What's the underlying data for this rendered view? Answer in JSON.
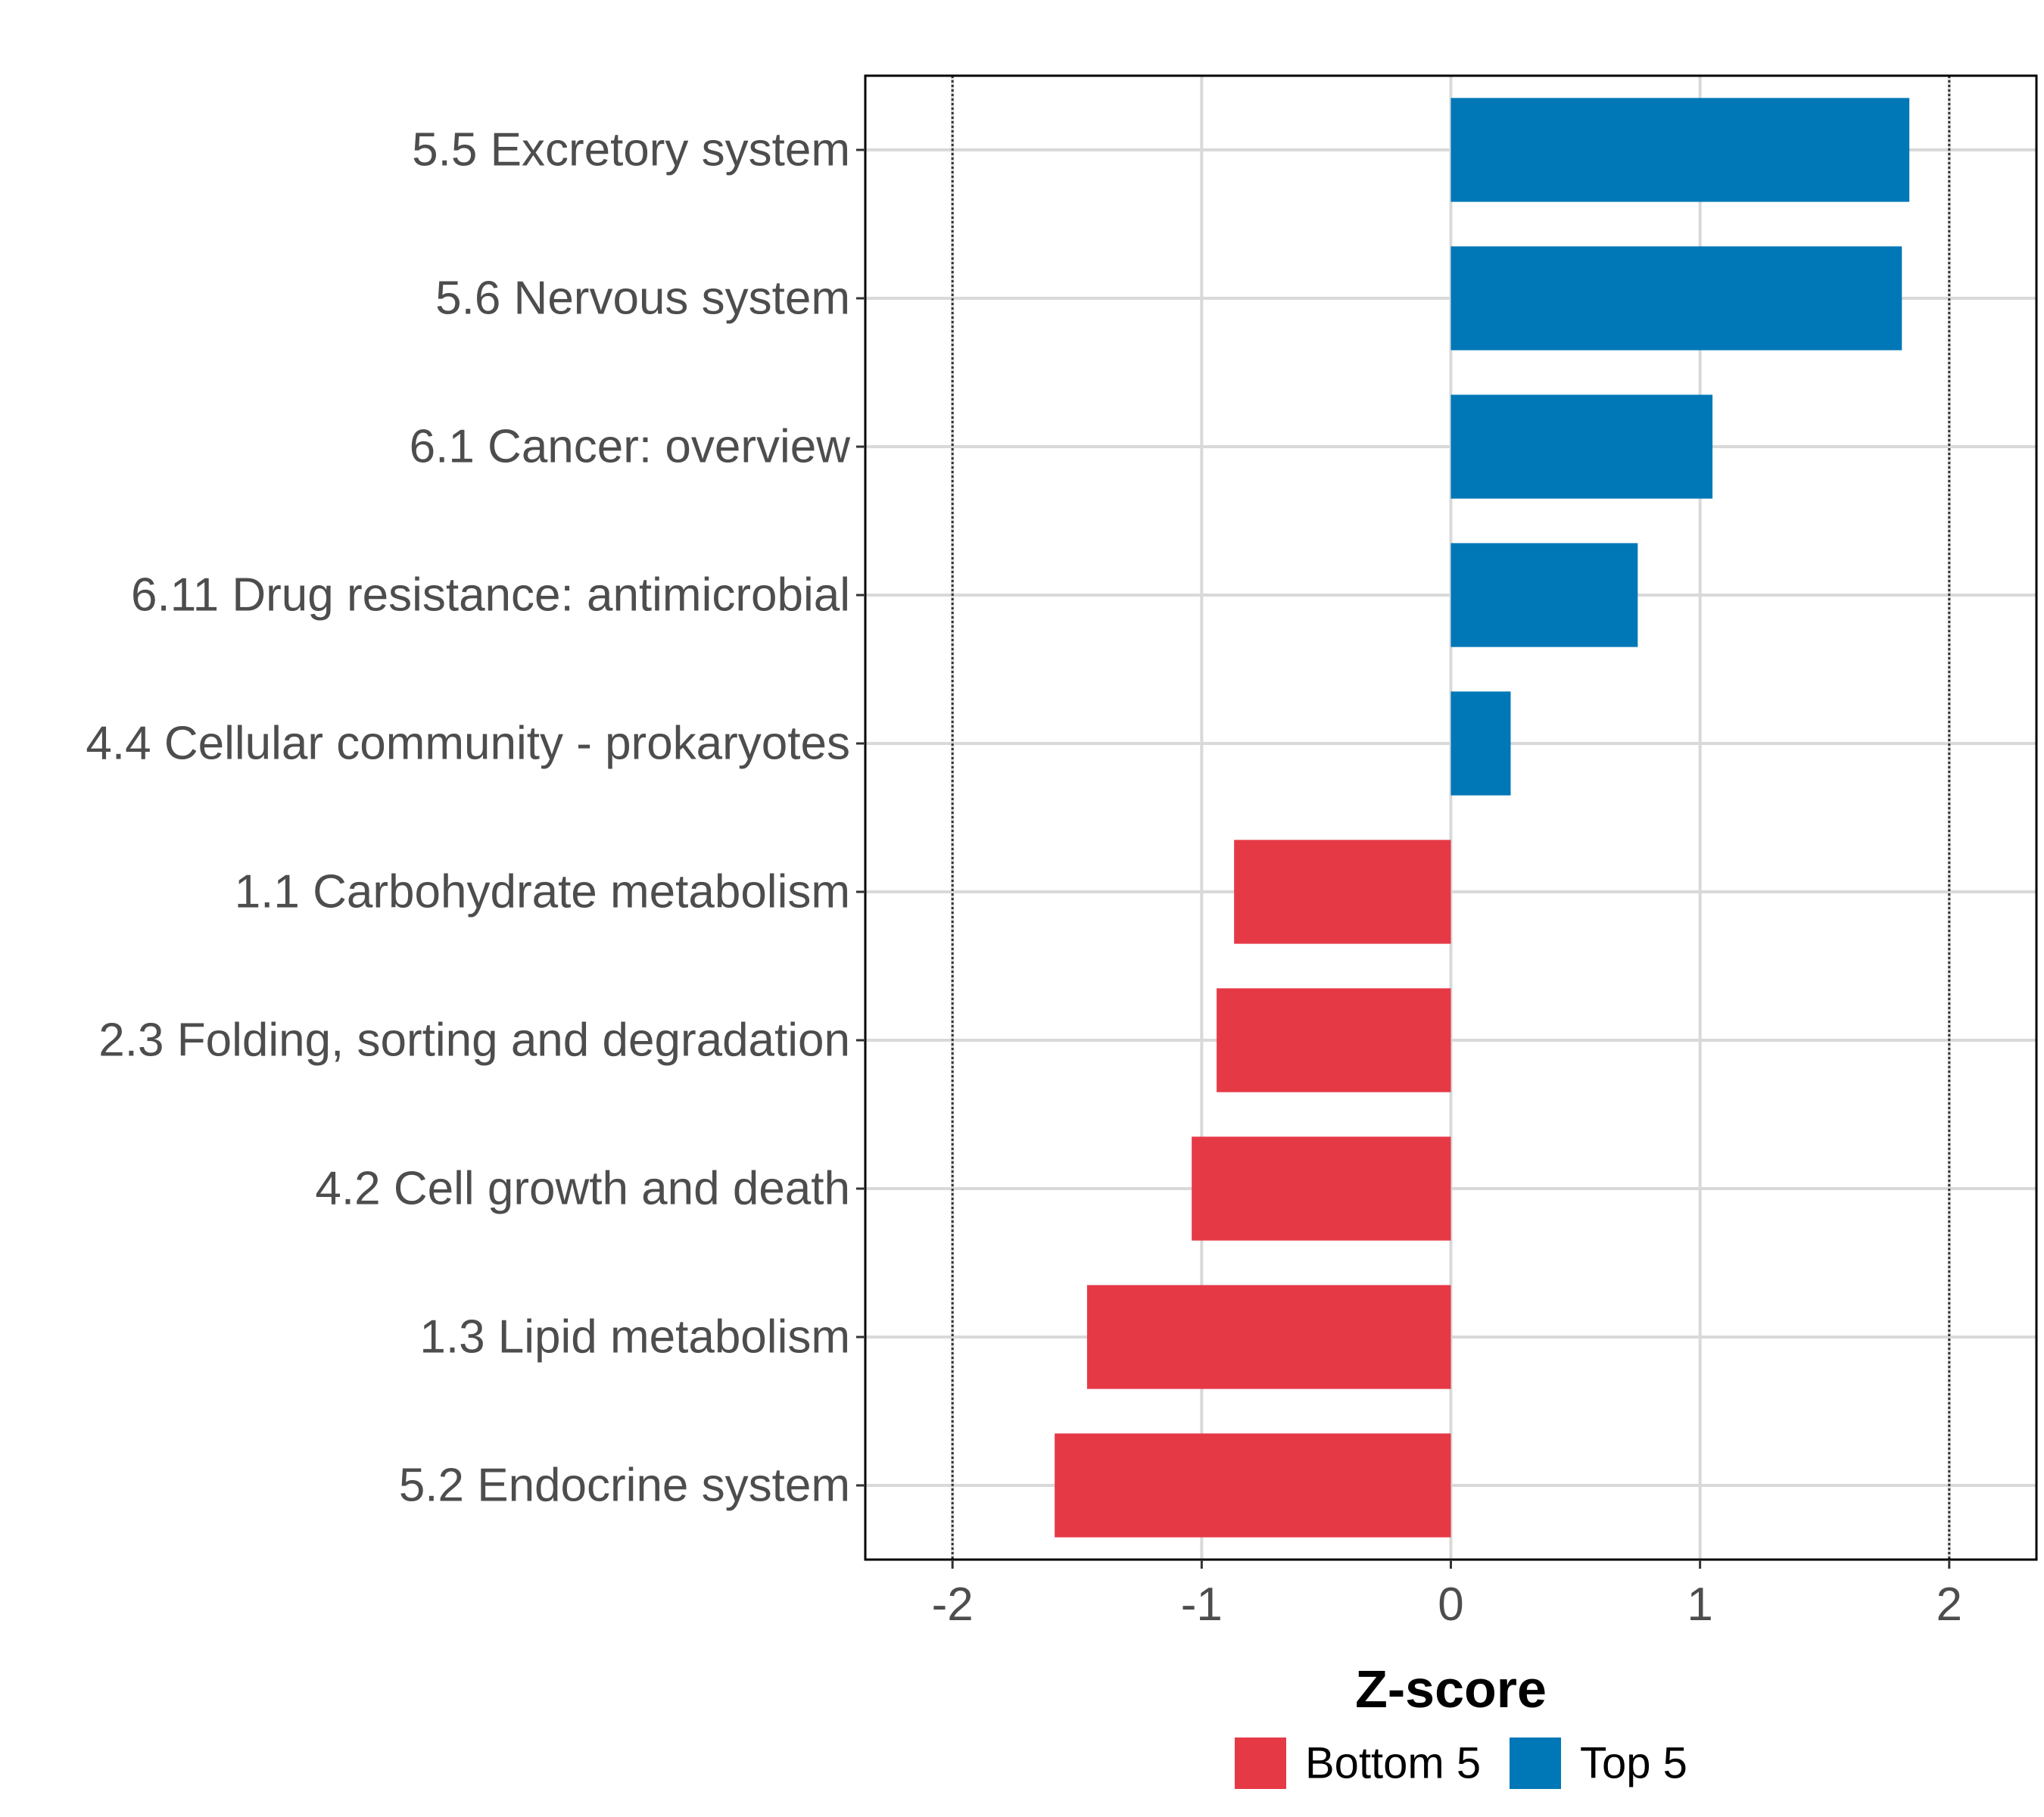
{
  "chart_data": {
    "type": "bar",
    "orientation": "horizontal",
    "title": "",
    "xlabel": "Z-score",
    "ylabel": "",
    "xlim": [
      -2.35,
      2.35
    ],
    "xticks": [
      -2,
      -1,
      0,
      1,
      2
    ],
    "xtick_labels": [
      "-2",
      "-1",
      "0",
      "1",
      "2"
    ],
    "reference_lines": [
      -2,
      2
    ],
    "grid": true,
    "categories": [
      "5.5 Excretory system",
      "5.6 Nervous system",
      "6.1 Cancer: overview",
      "6.11 Drug resistance: antimicrobial",
      "4.4 Cellular community - prokaryotes",
      "1.1 Carbohydrate metabolism",
      "2.3 Folding, sorting and degradation",
      "4.2 Cell growth and death",
      "1.3 Lipid metabolism",
      "5.2 Endocrine system"
    ],
    "values": [
      1.84,
      1.81,
      1.05,
      0.75,
      0.24,
      -0.87,
      -0.94,
      -1.04,
      -1.46,
      -1.59
    ],
    "groups": [
      "Top 5",
      "Top 5",
      "Top 5",
      "Top 5",
      "Top 5",
      "Bottom 5",
      "Bottom 5",
      "Bottom 5",
      "Bottom 5",
      "Bottom 5"
    ],
    "legend": {
      "position": "bottom",
      "entries": [
        {
          "label": "Bottom 5",
          "color": "#e63946"
        },
        {
          "label": "Top 5",
          "color": "#0077b6"
        }
      ]
    }
  }
}
